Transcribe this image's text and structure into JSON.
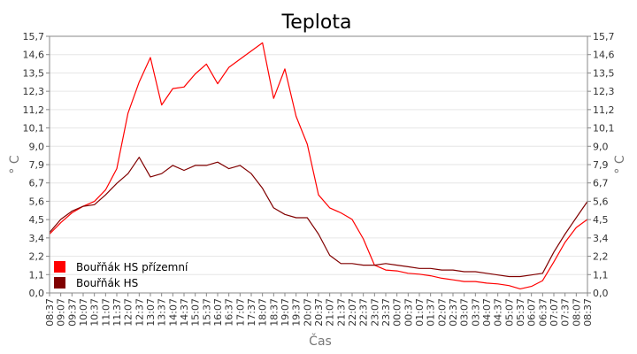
{
  "chart_data": {
    "type": "line",
    "title": "Teplota",
    "xlabel": "Čas",
    "ylabel": "° C",
    "ylim": [
      0.0,
      15.7
    ],
    "yticks": [
      "0,0",
      "1,1",
      "2,2",
      "3,4",
      "4,5",
      "5,6",
      "6,7",
      "7,9",
      "9,0",
      "10,1",
      "11,2",
      "12,3",
      "13,5",
      "14,6",
      "15,7"
    ],
    "xticks": [
      "08:37",
      "09:07",
      "09:37",
      "10:07",
      "10:37",
      "11:07",
      "11:37",
      "12:07",
      "12:37",
      "13:07",
      "13:37",
      "14:07",
      "14:37",
      "15:07",
      "15:37",
      "16:07",
      "16:37",
      "17:07",
      "17:37",
      "18:07",
      "18:37",
      "19:07",
      "19:37",
      "20:07",
      "20:37",
      "21:07",
      "21:37",
      "22:07",
      "22:37",
      "23:07",
      "23:37",
      "00:07",
      "00:37",
      "01:07",
      "01:37",
      "02:07",
      "02:37",
      "03:07",
      "03:37",
      "04:07",
      "04:37",
      "05:07",
      "05:37",
      "06:07",
      "06:37",
      "07:07",
      "07:37",
      "08:07",
      "08:37"
    ],
    "grid": true,
    "legend_position": "bottom-left",
    "series": [
      {
        "name": "Bouřňák HS přízemní",
        "color": "#ff0000",
        "values": [
          3.6,
          4.3,
          4.9,
          5.3,
          5.6,
          6.3,
          7.6,
          11.0,
          12.9,
          14.4,
          11.5,
          12.5,
          12.6,
          13.4,
          14.0,
          12.8,
          13.8,
          14.3,
          14.8,
          15.3,
          11.9,
          13.7,
          10.8,
          9.1,
          6.0,
          5.2,
          4.9,
          4.5,
          3.3,
          1.7,
          1.4,
          1.35,
          1.2,
          1.15,
          1.05,
          0.9,
          0.8,
          0.7,
          0.7,
          0.6,
          0.55,
          0.45,
          0.25,
          0.4,
          0.75,
          1.9,
          3.1,
          4.0,
          4.5
        ]
      },
      {
        "name": "Bouřňák HS",
        "color": "#800000",
        "values": [
          3.7,
          4.5,
          5.0,
          5.3,
          5.4,
          6.0,
          6.7,
          7.3,
          8.3,
          7.1,
          7.3,
          7.8,
          7.5,
          7.8,
          7.8,
          8.0,
          7.6,
          7.8,
          7.3,
          6.4,
          5.2,
          4.8,
          4.6,
          4.6,
          3.6,
          2.3,
          1.8,
          1.8,
          1.7,
          1.7,
          1.8,
          1.7,
          1.6,
          1.5,
          1.5,
          1.4,
          1.4,
          1.3,
          1.3,
          1.2,
          1.1,
          1.0,
          1.0,
          1.1,
          1.2,
          2.5,
          3.6,
          4.6,
          5.6
        ]
      }
    ]
  }
}
